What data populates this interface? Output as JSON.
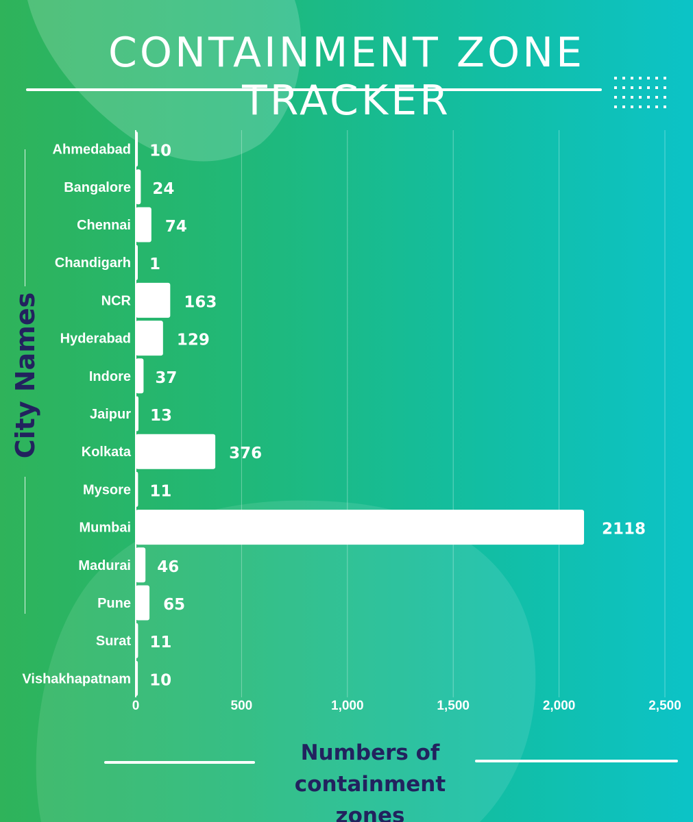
{
  "header": {
    "title": "CONTAINMENT ZONE TRACKER"
  },
  "colors": {
    "gradient_start": "#2fb35a",
    "gradient_end": "#0cc3c7",
    "bar": "#ffffff",
    "axis_title": "#22225e"
  },
  "chart_data": {
    "type": "bar",
    "orientation": "horizontal",
    "categories": [
      "Ahmedabad",
      "Bangalore",
      "Chennai",
      "Chandigarh",
      "NCR",
      "Hyderabad",
      "Indore",
      "Jaipur",
      "Kolkata",
      "Mysore",
      "Mumbai",
      "Madurai",
      "Pune",
      "Surat",
      "Vishakhapatnam"
    ],
    "values": [
      10,
      24,
      74,
      1,
      163,
      129,
      37,
      13,
      376,
      11,
      2118,
      46,
      65,
      11,
      10
    ],
    "value_labels": [
      "10",
      "24",
      "74",
      "1",
      "163",
      "129",
      "37",
      "13",
      "376",
      "11",
      "2118",
      "46",
      "65",
      "11",
      "10"
    ],
    "xlim": [
      0,
      2500
    ],
    "x_ticks": [
      0,
      500,
      1000,
      1500,
      2000,
      2500
    ],
    "x_tick_labels": [
      "0",
      "500",
      "1,000",
      "1,500",
      "2,000",
      "2,500"
    ],
    "xlabel": "Numbers of containment zones",
    "ylabel": "City Names",
    "grid": true
  }
}
